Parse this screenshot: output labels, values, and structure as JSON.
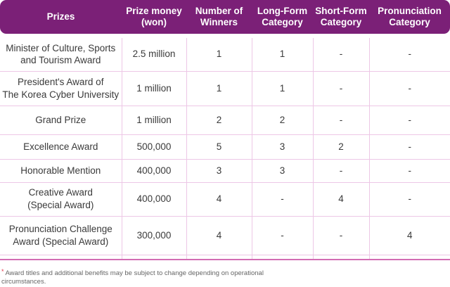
{
  "colors": {
    "header-bg": "#7B2077",
    "header-text": "#FFFFFF",
    "grid-line": "#EDC7E6",
    "table-bottom-border": "#D36CB4",
    "body-text": "#3A3A3A",
    "footnote-text": "#666666",
    "footnote-asterisk": "#E03A4E"
  },
  "table": {
    "headers": [
      "Prizes",
      "Prize money\n(won)",
      "Number of\nWinners",
      "Long-Form\nCategory",
      "Short-Form\nCategory",
      "Pronunciation\nCategory"
    ],
    "rows": [
      {
        "prize": "Minister of Culture, Sports\nand Tourism Award",
        "money": "2.5 million",
        "winners": "1",
        "long_form": "1",
        "short_form": "-",
        "pronunciation": "-"
      },
      {
        "prize": "President's Award of\nThe Korea Cyber University",
        "money": "1 million",
        "winners": "1",
        "long_form": "1",
        "short_form": "-",
        "pronunciation": "-"
      },
      {
        "prize": "Grand Prize",
        "money": "1 million",
        "winners": "2",
        "long_form": "2",
        "short_form": "-",
        "pronunciation": "-"
      },
      {
        "prize": "Excellence Award",
        "money": "500,000",
        "winners": "5",
        "long_form": "3",
        "short_form": "2",
        "pronunciation": "-"
      },
      {
        "prize": "Honorable Mention",
        "money": "400,000",
        "winners": "3",
        "long_form": "3",
        "short_form": "-",
        "pronunciation": "-"
      },
      {
        "prize": "Creative Award\n(Special Award)",
        "money": "400,000",
        "winners": "4",
        "long_form": "-",
        "short_form": "4",
        "pronunciation": "-"
      },
      {
        "prize": "Pronunciation Challenge\nAward (Special Award)",
        "money": "300,000",
        "winners": "4",
        "long_form": "-",
        "short_form": "-",
        "pronunciation": "4"
      }
    ]
  },
  "footnote": {
    "marker": "*",
    "text": "Award titles and additional benefits may be subject to change depending on operational\ncircumstances."
  }
}
